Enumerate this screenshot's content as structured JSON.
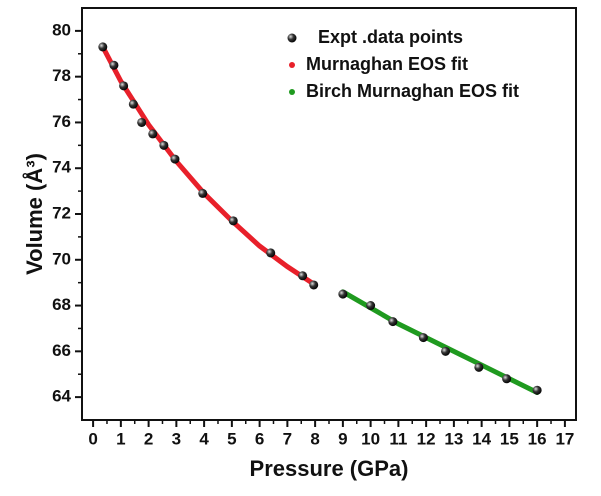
{
  "chart_data": {
    "type": "scatter",
    "xlabel": "Pressure (GPa)",
    "ylabel": "Volume (Å³)",
    "xlim": [
      -0.4,
      17.4
    ],
    "ylim": [
      63,
      81
    ],
    "xticks": [
      0,
      1,
      2,
      3,
      4,
      5,
      6,
      7,
      8,
      9,
      10,
      11,
      12,
      13,
      14,
      15,
      16,
      17
    ],
    "yticks": [
      64,
      66,
      68,
      70,
      72,
      74,
      76,
      78,
      80
    ],
    "legend": "upper right",
    "series": [
      {
        "name": "Expt .data points",
        "style": "markers",
        "color": "#111111",
        "x": [
          0.35,
          0.75,
          1.1,
          1.45,
          1.75,
          2.15,
          2.55,
          2.95,
          3.95,
          5.05,
          6.4,
          7.55,
          7.95,
          9.0,
          10.0,
          10.8,
          11.9,
          12.7,
          13.9,
          14.9,
          16.0
        ],
        "values": [
          79.3,
          78.5,
          77.6,
          76.8,
          76.0,
          75.5,
          75.0,
          74.4,
          72.9,
          71.7,
          70.3,
          69.3,
          68.9,
          68.5,
          68.0,
          67.3,
          66.6,
          66.0,
          65.3,
          64.8,
          64.3
        ]
      },
      {
        "name": "Murnaghan EOS fit",
        "style": "line",
        "color": "#e8202a",
        "x": [
          0.35,
          1,
          2,
          3,
          4,
          5,
          6,
          7,
          8
        ],
        "values": [
          79.3,
          77.8,
          75.9,
          74.3,
          72.9,
          71.7,
          70.6,
          69.7,
          68.9
        ]
      },
      {
        "name": "Birch Murnaghan EOS fit",
        "style": "line",
        "color": "#1f9a1f",
        "x": [
          9,
          10,
          11,
          12,
          13,
          14,
          15,
          16
        ],
        "values": [
          68.6,
          67.9,
          67.2,
          66.6,
          66.0,
          65.4,
          64.8,
          64.2
        ]
      }
    ]
  }
}
